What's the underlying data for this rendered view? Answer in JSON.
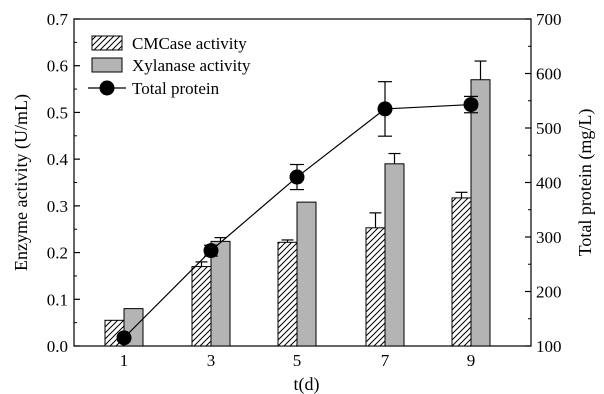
{
  "chart_data": {
    "type": "bar",
    "categories": [
      "1",
      "3",
      "5",
      "7",
      "9"
    ],
    "xlabel": "t(d)",
    "ylabel_left": "Enzyme activity (U/mL)",
    "ylabel_right": "Total protein (mg/L)",
    "ylim_left": [
      0,
      0.7
    ],
    "ylim_right": [
      100,
      700
    ],
    "yticks_left": [
      "0.0",
      "0.1",
      "0.2",
      "0.3",
      "0.4",
      "0.5",
      "0.6",
      "0.7"
    ],
    "yticks_right": [
      "100",
      "200",
      "300",
      "400",
      "500",
      "600",
      "700"
    ],
    "legend_position": "top-left",
    "grid": false,
    "series": [
      {
        "name": "CMCase activity",
        "kind": "bar",
        "axis": "left",
        "pattern": "hatched",
        "values": [
          0.055,
          0.17,
          0.222,
          0.253,
          0.317
        ],
        "errors": [
          0.0,
          0.01,
          0.005,
          0.032,
          0.012
        ]
      },
      {
        "name": "Xylanase activity",
        "kind": "bar",
        "axis": "left",
        "color": "#b4b4b4",
        "values": [
          0.08,
          0.224,
          0.308,
          0.39,
          0.57
        ],
        "errors": [
          0.0,
          0.008,
          0.0,
          0.022,
          0.04
        ]
      },
      {
        "name": "Total protein",
        "kind": "line",
        "axis": "right",
        "marker": "circle",
        "values": [
          115,
          275,
          410,
          535,
          543
        ],
        "errors": [
          0,
          10,
          23,
          50,
          15
        ]
      }
    ]
  }
}
